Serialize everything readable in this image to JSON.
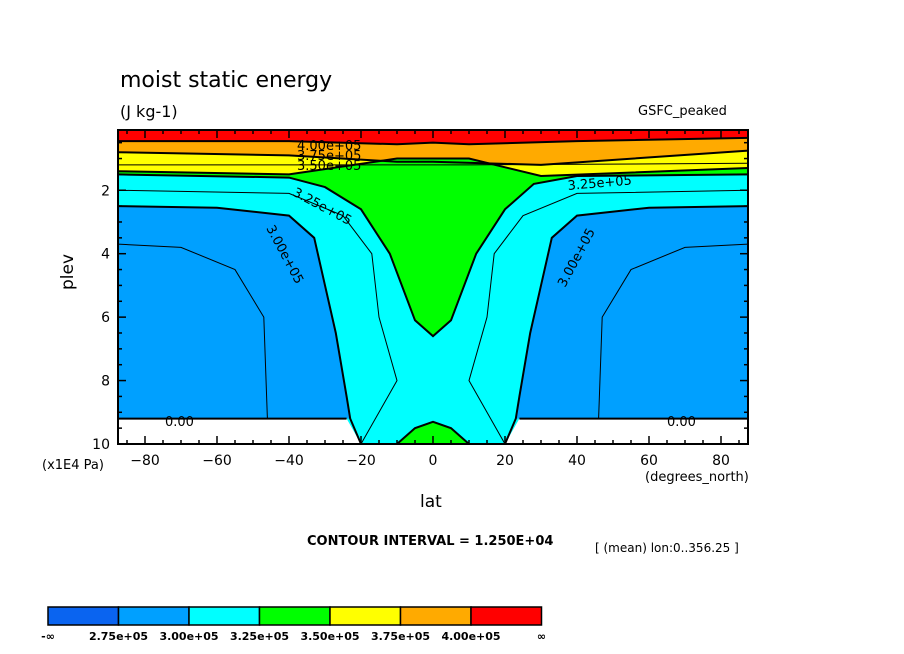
{
  "chart_data": {
    "type": "heatmap",
    "subtype": "filled-contour",
    "title": "moist static energy",
    "units": "(J kg-1)",
    "dataset": "GSFC_peaked",
    "xlabel": "lat",
    "xunits": "(degrees_north)",
    "ylabel": "plev",
    "yunits": "(x1E4 Pa)",
    "xlim": [
      -87.5,
      87.5
    ],
    "ylim": [
      10,
      0.1
    ],
    "xticks": [
      -80,
      -60,
      -40,
      -20,
      0,
      20,
      40,
      60,
      80
    ],
    "yticks": [
      2,
      4,
      6,
      8,
      10
    ],
    "contour_interval_text": "CONTOUR INTERVAL = 1.250E+04",
    "averaging_text": "[ (mean) lon:0..356.25 ]",
    "contour_labels": [
      "4.00e+05",
      "3.75e+05",
      "3.50e+05",
      "3.25e+05",
      "3.25e+05",
      "3.00e+05",
      "3.00e+05",
      "0.00",
      "0.00"
    ],
    "levels": [
      {
        "label": "-∞",
        "color": "#0a64f0"
      },
      {
        "label": "2.75e+05",
        "color": "#00a0ff"
      },
      {
        "label": "3.00e+05",
        "color": "#00ffff"
      },
      {
        "label": "3.25e+05",
        "color": "#00ff00"
      },
      {
        "label": "3.50e+05",
        "color": "#ffff00"
      },
      {
        "label": "3.75e+05",
        "color": "#ffaa00"
      },
      {
        "label": "4.00e+05",
        "color": "#ff0000"
      },
      {
        "label": "∞",
        "color": ""
      }
    ],
    "regions": [
      {
        "name": "below-ground",
        "value_range": "0.00 (masked)",
        "approx_plev_top": 9.2,
        "lat_extent": "|lat| > 25"
      },
      {
        "name": "2.75e5-3.00e5",
        "approx_plev": [
          2.5,
          9.2
        ],
        "lat_extent": "|lat| > 30 (widening to ~22 near surface)"
      },
      {
        "name": "3.00e5-3.25e5",
        "approx_plev": [
          1.5,
          10
        ],
        "lat_extent": "tropics flank and upper extratropics"
      },
      {
        "name": "3.25e5-3.50e5",
        "approx_plev": [
          0.9,
          6.6
        ],
        "lat_extent": "tropical V shape, plus surface bump near equator"
      },
      {
        "name": "3.50e5-3.75e5",
        "approx_plev": [
          0.6,
          1.4
        ]
      },
      {
        "name": "3.75e5-4.00e5",
        "approx_plev": [
          0.4,
          0.8
        ]
      },
      {
        "name": ">4.00e5",
        "approx_plev": [
          0.1,
          0.4
        ]
      }
    ]
  }
}
